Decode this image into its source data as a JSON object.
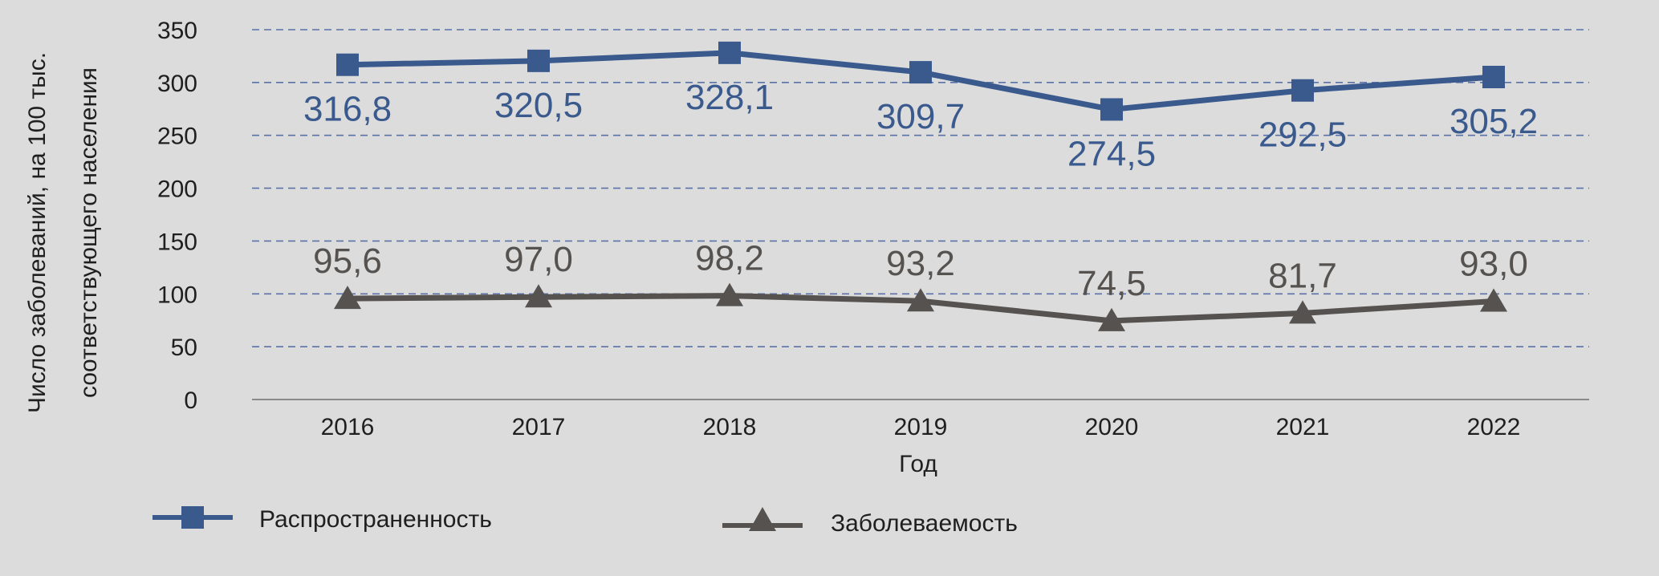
{
  "chart_data": {
    "type": "line",
    "x": [
      "2016",
      "2017",
      "2018",
      "2019",
      "2020",
      "2021",
      "2022"
    ],
    "xlabel": "Год",
    "ylabel_lines": [
      "Число заболеваний, на 100 тыс.",
      "соответствующего населения"
    ],
    "ylim": [
      0,
      350
    ],
    "yticks": [
      "0",
      "50",
      "100",
      "150",
      "200",
      "250",
      "300",
      "350"
    ],
    "grid": "horizontal dashed",
    "legend_position": "bottom",
    "series": [
      {
        "name": "Распространенность",
        "values": [
          316.8,
          320.5,
          328.1,
          309.7,
          274.5,
          292.5,
          305.2
        ],
        "labels": [
          "316,8",
          "320,5",
          "328,1",
          "309,7",
          "274,5",
          "292,5",
          "305,2"
        ],
        "color": "#3a5a8e",
        "marker": "square-icon"
      },
      {
        "name": "Заболеваемость",
        "values": [
          95.6,
          97.0,
          98.2,
          93.2,
          74.5,
          81.7,
          93.0
        ],
        "labels": [
          "95,6",
          "97,0",
          "98,2",
          "93,2",
          "74,5",
          "81,7",
          "93,0"
        ],
        "color": "#555250",
        "marker": "triangle-icon"
      }
    ]
  }
}
